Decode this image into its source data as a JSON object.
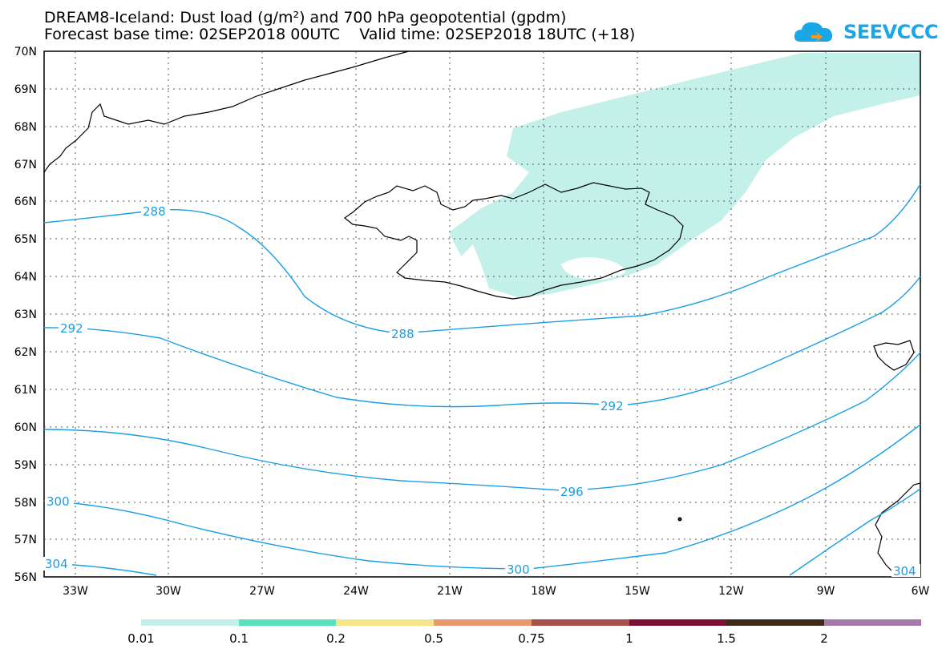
{
  "title": {
    "line1": "DREAM8-Iceland: Dust load (g/m²) and 700 hPa geopotential (gpdm)",
    "line2": "Forecast base time: 02SEP2018 00UTC    Valid time: 02SEP2018 18UTC (+18)"
  },
  "logo": {
    "text": "SEEVCCC",
    "icon": "cloud-logo-icon",
    "color": "#1aa7e8"
  },
  "axes": {
    "lat_labels": [
      "70N",
      "69N",
      "68N",
      "67N",
      "66N",
      "65N",
      "64N",
      "63N",
      "62N",
      "61N",
      "60N",
      "59N",
      "58N",
      "57N",
      "56N"
    ],
    "lon_labels": [
      "33W",
      "30W",
      "27W",
      "24W",
      "21W",
      "18W",
      "15W",
      "12W",
      "9W",
      "6W"
    ]
  },
  "contours": {
    "color": "#1a9ee6",
    "labels": [
      {
        "text": "288",
        "id": "c288a"
      },
      {
        "text": "288",
        "id": "c288b"
      },
      {
        "text": "292",
        "id": "c292a"
      },
      {
        "text": "292",
        "id": "c292b"
      },
      {
        "text": "296",
        "id": "c296"
      },
      {
        "text": "300",
        "id": "c300a"
      },
      {
        "text": "300",
        "id": "c300b"
      },
      {
        "text": "304",
        "id": "c304a"
      },
      {
        "text": "304",
        "id": "c304b"
      }
    ]
  },
  "dust_color": "#c4f0ea",
  "colorbar": {
    "colors": [
      "#c4f0ea",
      "#5ce0bc",
      "#f5e68c",
      "#e69a6e",
      "#a8514b",
      "#7d0f35",
      "#3f2a19",
      "#a57aa8"
    ],
    "labels": [
      "0.01",
      "0.1",
      "0.2",
      "0.5",
      "0.75",
      "1",
      "1.5",
      "2"
    ]
  }
}
